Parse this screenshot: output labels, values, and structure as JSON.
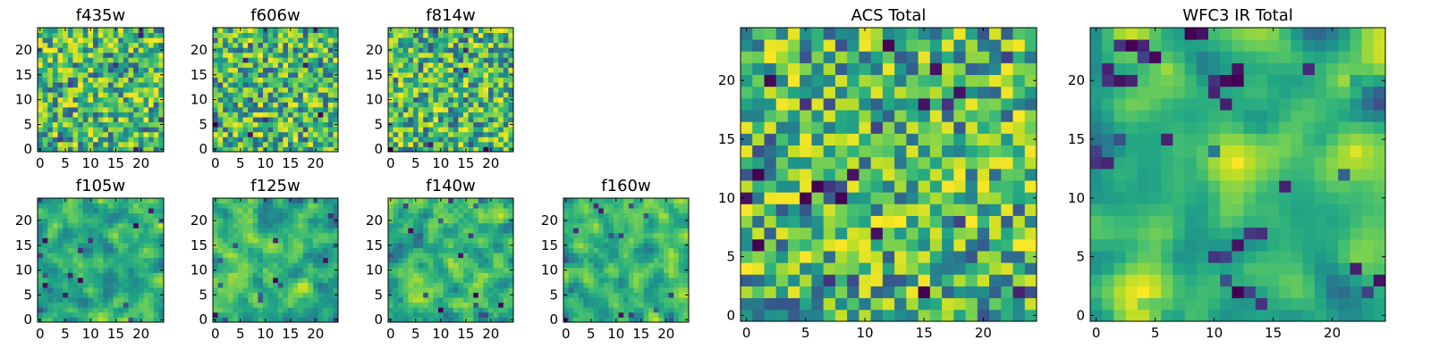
{
  "chart_data": [
    {
      "type": "heatmap",
      "title": "f435w",
      "size": 25,
      "x_ticks": [
        0,
        5,
        10,
        15,
        20
      ],
      "y_ticks": [
        0,
        5,
        10,
        15,
        20
      ],
      "xlim": [
        0,
        25
      ],
      "ylim": [
        0,
        25
      ],
      "colormap": "viridis",
      "seed": 11,
      "smoothness": 0,
      "dark_spots": []
    },
    {
      "type": "heatmap",
      "title": "f606w",
      "size": 25,
      "x_ticks": [
        0,
        5,
        10,
        15,
        20
      ],
      "y_ticks": [
        0,
        5,
        10,
        15,
        20
      ],
      "xlim": [
        0,
        25
      ],
      "ylim": [
        0,
        25
      ],
      "colormap": "viridis",
      "seed": 23,
      "smoothness": 0,
      "dark_spots": []
    },
    {
      "type": "heatmap",
      "title": "f814w",
      "size": 25,
      "x_ticks": [
        0,
        5,
        10,
        15,
        20
      ],
      "y_ticks": [
        0,
        5,
        10,
        15,
        20
      ],
      "xlim": [
        0,
        25
      ],
      "ylim": [
        0,
        25
      ],
      "colormap": "viridis",
      "seed": 37,
      "smoothness": 0,
      "dark_spots": []
    },
    {
      "type": "heatmap",
      "title": "f105w",
      "size": 25,
      "x_ticks": [
        0,
        5,
        10,
        15,
        20
      ],
      "y_ticks": [
        0,
        5,
        10,
        15,
        20
      ],
      "xlim": [
        0,
        25
      ],
      "ylim": [
        0,
        25
      ],
      "colormap": "viridis",
      "seed": 41,
      "smoothness": 1,
      "dark_spots": []
    },
    {
      "type": "heatmap",
      "title": "f125w",
      "size": 25,
      "x_ticks": [
        0,
        5,
        10,
        15,
        20
      ],
      "y_ticks": [
        0,
        5,
        10,
        15,
        20
      ],
      "xlim": [
        0,
        25
      ],
      "ylim": [
        0,
        25
      ],
      "colormap": "viridis",
      "seed": 53,
      "smoothness": 1,
      "dark_spots": []
    },
    {
      "type": "heatmap",
      "title": "f140w",
      "size": 25,
      "x_ticks": [
        0,
        5,
        10,
        15,
        20
      ],
      "y_ticks": [
        0,
        5,
        10,
        15,
        20
      ],
      "xlim": [
        0,
        25
      ],
      "ylim": [
        0,
        25
      ],
      "colormap": "viridis",
      "seed": 67,
      "smoothness": 1,
      "dark_spots": []
    },
    {
      "type": "heatmap",
      "title": "f160w",
      "size": 25,
      "x_ticks": [
        0,
        5,
        10,
        15,
        20
      ],
      "y_ticks": [
        0,
        5,
        10,
        15,
        20
      ],
      "xlim": [
        0,
        25
      ],
      "ylim": [
        0,
        25
      ],
      "colormap": "viridis",
      "seed": 79,
      "smoothness": 1,
      "dark_spots": []
    },
    {
      "type": "heatmap",
      "title": "ACS Total",
      "size": 25,
      "x_ticks": [
        0,
        5,
        10,
        15,
        20
      ],
      "y_ticks": [
        0,
        5,
        10,
        15,
        20
      ],
      "xlim": [
        0,
        25
      ],
      "ylim": [
        0,
        25
      ],
      "colormap": "viridis",
      "seed": 97,
      "smoothness": 0,
      "dark_spots": [
        [
          12,
          23,
          0.0
        ],
        [
          2,
          20,
          0.02
        ],
        [
          16,
          21,
          0.05
        ],
        [
          5,
          18,
          0.15
        ],
        [
          15,
          18,
          0.05
        ],
        [
          17,
          18,
          0.15
        ],
        [
          22,
          17,
          0.3
        ],
        [
          11,
          16,
          0.2
        ],
        [
          2,
          15,
          0.25
        ],
        [
          1,
          12,
          0.0
        ],
        [
          6,
          11,
          0.0
        ],
        [
          8,
          11,
          0.25
        ],
        [
          5,
          10,
          0.0
        ],
        [
          8,
          10,
          0.0
        ],
        [
          0,
          10,
          0.05
        ],
        [
          11,
          7,
          0.05
        ],
        [
          1,
          6,
          0.0
        ],
        [
          18,
          8,
          0.2
        ],
        [
          7,
          3,
          0.15
        ],
        [
          15,
          2,
          0.0
        ],
        [
          23,
          2,
          0.1
        ],
        [
          24,
          2,
          0.25
        ],
        [
          21,
          2,
          0.3
        ],
        [
          0,
          3,
          0.3
        ]
      ]
    },
    {
      "type": "heatmap",
      "title": "WFC3 IR Total",
      "size": 25,
      "x_ticks": [
        0,
        5,
        10,
        15,
        20
      ],
      "y_ticks": [
        0,
        5,
        10,
        15,
        20
      ],
      "xlim": [
        0,
        25
      ],
      "ylim": [
        0,
        25
      ],
      "colormap": "viridis",
      "seed": 113,
      "smoothness": 2,
      "dark_spots": [
        [
          8,
          24,
          0.0
        ],
        [
          9,
          24,
          0.05
        ],
        [
          3,
          23,
          0.0
        ],
        [
          2,
          23,
          0.15
        ],
        [
          5,
          22,
          0.02
        ],
        [
          1,
          21,
          0.1
        ],
        [
          12,
          21,
          0.05
        ],
        [
          11,
          20,
          0.02
        ],
        [
          12,
          20,
          0.0
        ],
        [
          10,
          20,
          0.15
        ],
        [
          3,
          20,
          0.1
        ],
        [
          2,
          20,
          0.05
        ],
        [
          1,
          20,
          0.15
        ],
        [
          10,
          19,
          0.1
        ],
        [
          4,
          23,
          0.1
        ],
        [
          4,
          22,
          0.2
        ],
        [
          0,
          14,
          0.2
        ],
        [
          0,
          13,
          0.15
        ],
        [
          2,
          15,
          0.25
        ],
        [
          12,
          6,
          0.05
        ],
        [
          11,
          5,
          0.2
        ],
        [
          10,
          5,
          0.15
        ],
        [
          12,
          2,
          0.0
        ],
        [
          24,
          3,
          0.05
        ],
        [
          23,
          2,
          0.2
        ],
        [
          13,
          2,
          0.2
        ],
        [
          11,
          3,
          0.25
        ]
      ],
      "bright_blobs": [
        [
          12,
          13,
          3.5,
          0.95
        ],
        [
          22,
          14,
          3,
          0.9
        ],
        [
          4,
          2,
          4,
          0.95
        ],
        [
          21,
          20,
          2.5,
          0.8
        ],
        [
          6,
          21,
          3,
          0.8
        ]
      ]
    }
  ]
}
